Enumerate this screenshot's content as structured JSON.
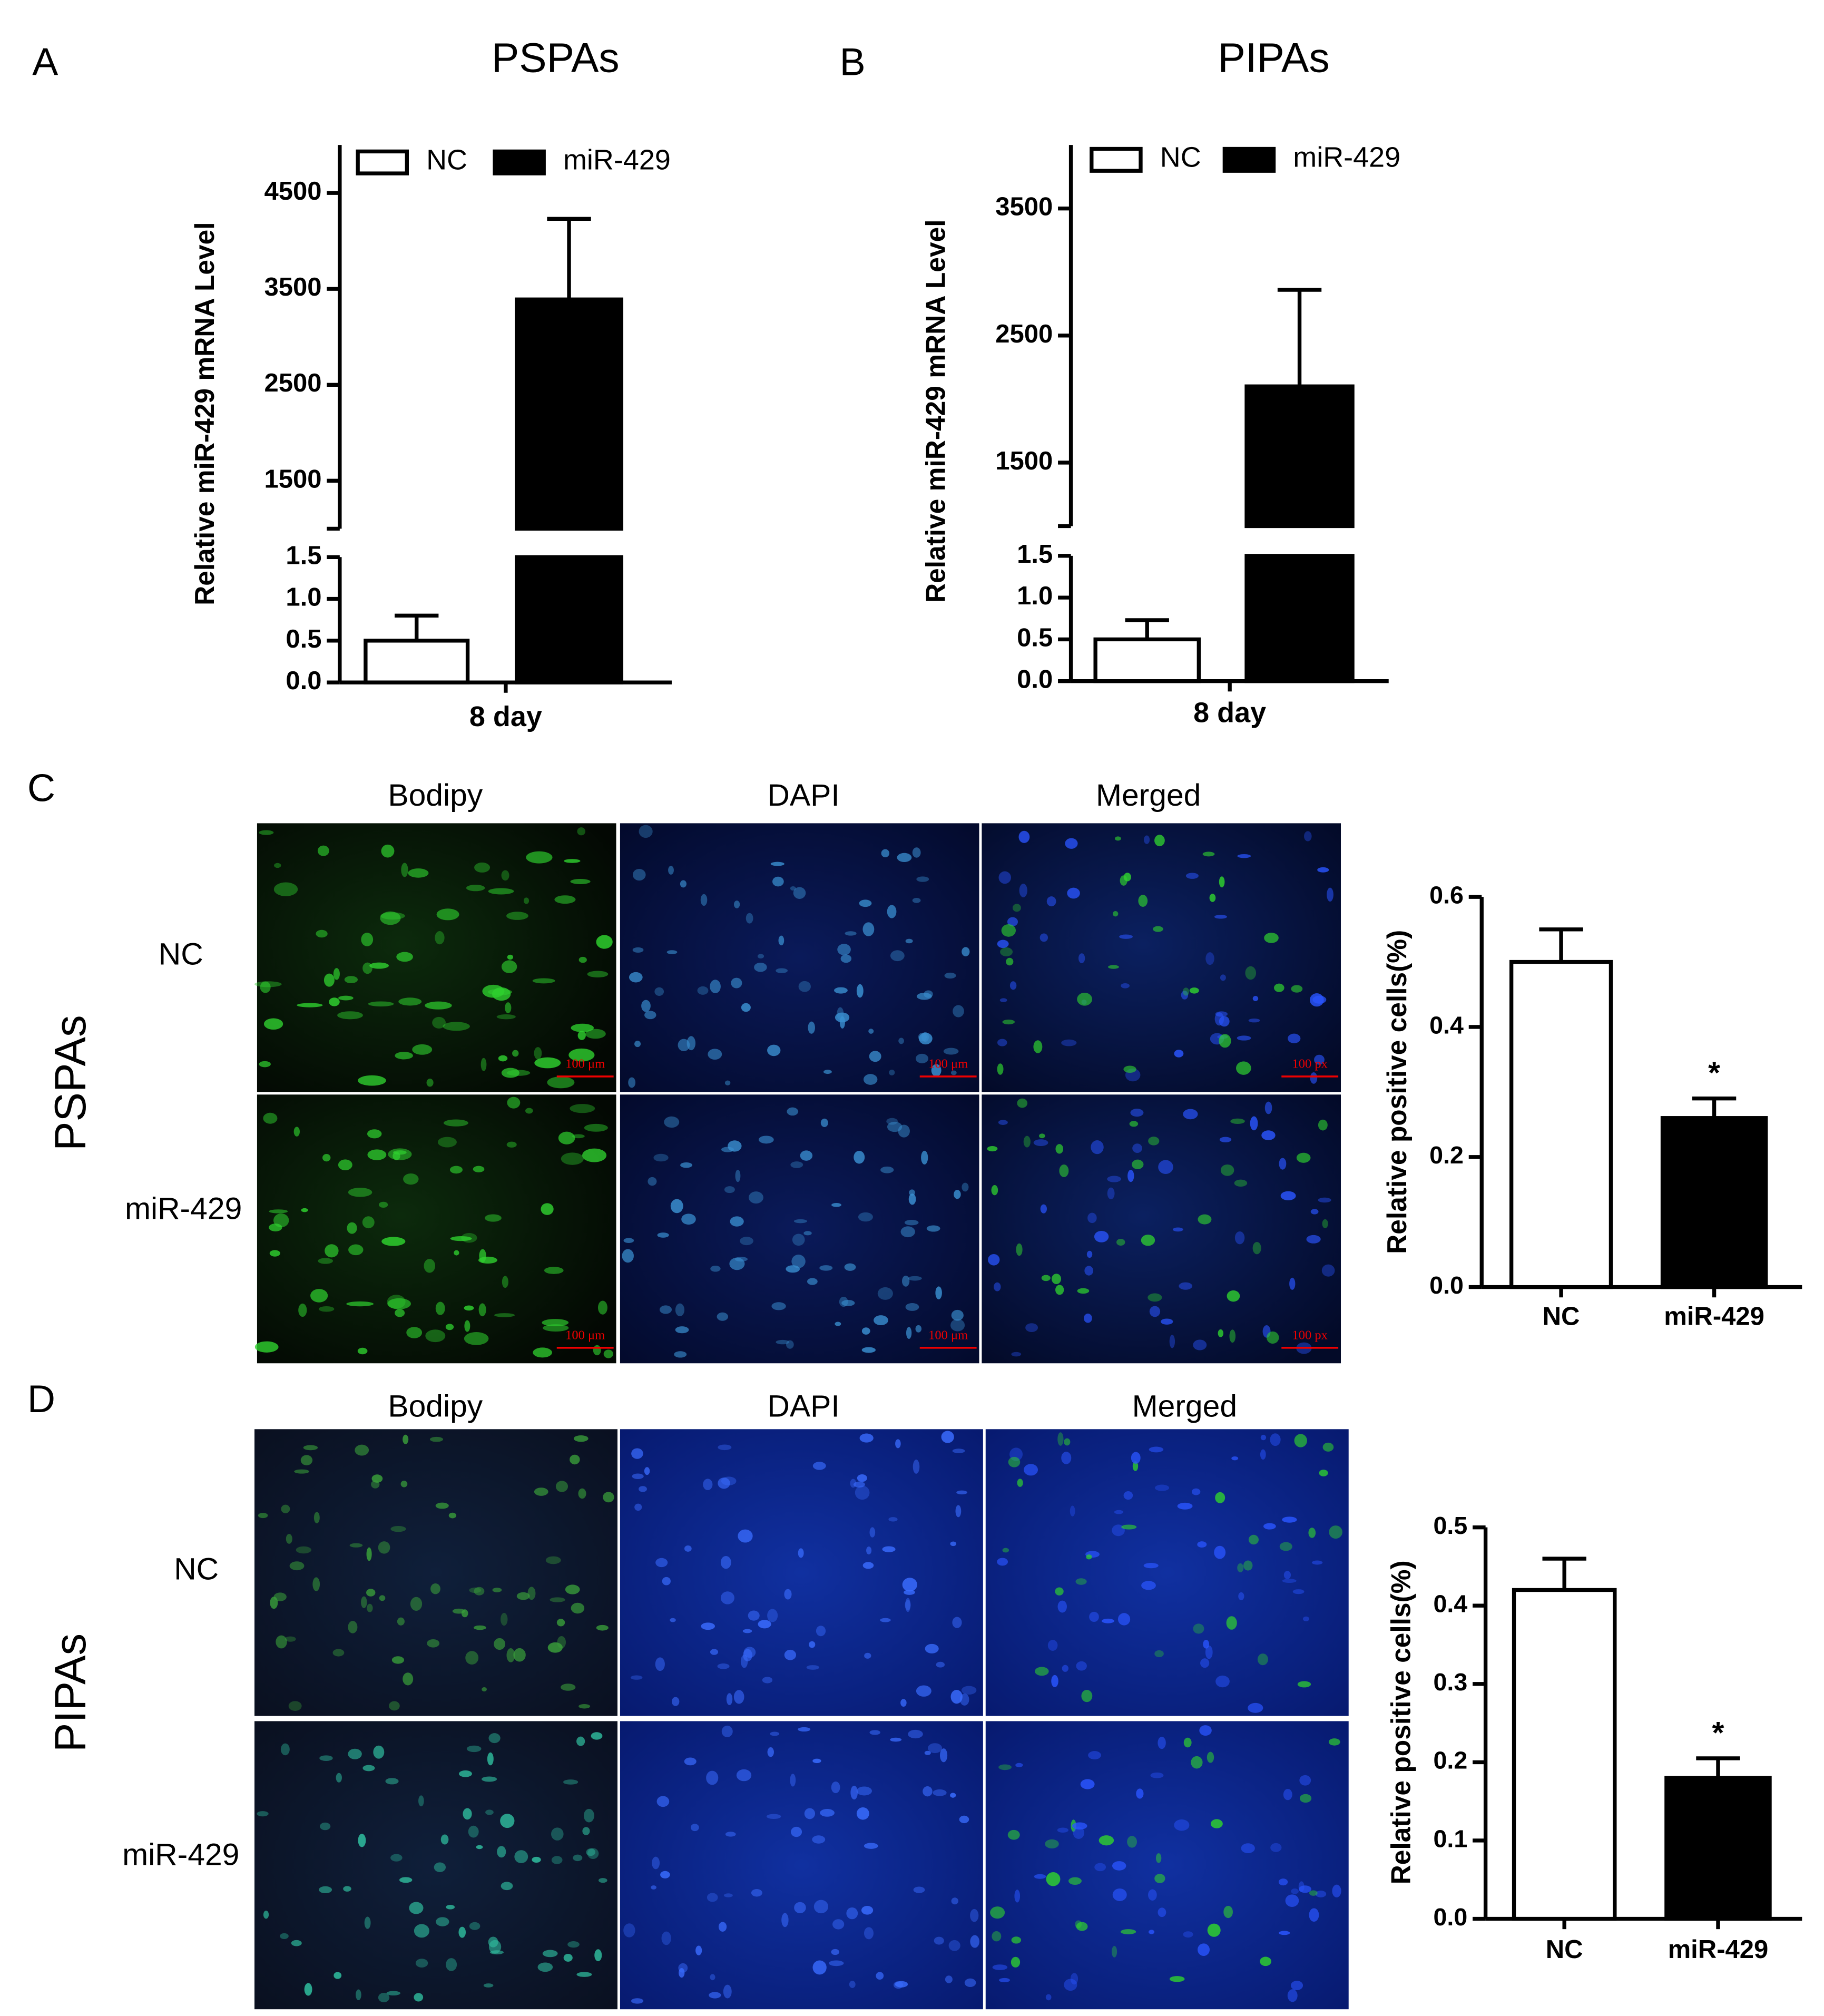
{
  "figure": {
    "panel_letters": [
      "A",
      "B",
      "C",
      "D"
    ],
    "image_blocks": [
      {
        "group": "PSPAs",
        "columns": [
          "Bodipy",
          "DAPI",
          "Merged"
        ],
        "rows": [
          "NC",
          "miR-429"
        ],
        "scale_labels": [
          [
            "100 μm",
            "100 μm",
            "100 px"
          ],
          [
            "100 μm",
            "100 μm",
            "100 px"
          ]
        ]
      },
      {
        "group": "PIPAs",
        "columns": [
          "Bodipy",
          "DAPI",
          "Merged"
        ],
        "rows": [
          "NC",
          "miR-429"
        ]
      }
    ]
  },
  "chart_data": [
    {
      "type": "broken-bar",
      "title": "PSPAs",
      "y_label": "Relative miR-429 mRNA Level",
      "categories": [
        "8 day"
      ],
      "series": [
        {
          "name": "NC",
          "color": "#ffffff",
          "values": [
            0.5
          ],
          "errors": [
            0.3
          ]
        },
        {
          "name": "miR-429",
          "color": "#000000",
          "values": [
            3390
          ],
          "errors": [
            840
          ]
        }
      ],
      "segments": [
        {
          "ylim": [
            0,
            1.5
          ],
          "yticks": [
            {
              "value": 0,
              "label": "0.0"
            },
            {
              "value": 0.5,
              "label": "0.5"
            },
            {
              "value": 1,
              "label": "1.0"
            },
            {
              "value": 1.5,
              "label": "1.5"
            }
          ]
        },
        {
          "ylim": [
            1000,
            5000
          ],
          "yticks": [
            1500,
            2500,
            3500,
            4500
          ]
        }
      ],
      "legend": "top"
    },
    {
      "type": "broken-bar",
      "title": "PIPAs",
      "y_label": "Relative miR-429 mRNA Level",
      "categories": [
        "8 day"
      ],
      "series": [
        {
          "name": "NC",
          "color": "#ffffff",
          "values": [
            0.5
          ],
          "errors": [
            0.23
          ]
        },
        {
          "name": "miR-429",
          "color": "#000000",
          "values": [
            2100
          ],
          "errors": [
            760
          ]
        }
      ],
      "segments": [
        {
          "ylim": [
            0,
            1.5
          ],
          "yticks": [
            {
              "value": 0,
              "label": "0.0"
            },
            {
              "value": 0.5,
              "label": "0.5"
            },
            {
              "value": 1,
              "label": "1.0"
            },
            {
              "value": 1.5,
              "label": "1.5"
            }
          ]
        },
        {
          "ylim": [
            1000,
            4000
          ],
          "yticks": [
            1500,
            2500,
            3500
          ]
        }
      ],
      "legend": "top"
    },
    {
      "type": "bar",
      "y_label": "Relative positive cells(%)",
      "categories": [
        "NC",
        "miR-429"
      ],
      "values": [
        0.5,
        0.26
      ],
      "errors": [
        0.05,
        0.03
      ],
      "colors": [
        "#ffffff",
        "#000000"
      ],
      "annotations": [
        {
          "x": "miR-429",
          "text": "*"
        }
      ],
      "ylim": [
        0,
        0.6
      ],
      "yticks": [
        {
          "value": 0,
          "label": "0.0"
        },
        {
          "value": 0.2,
          "label": "0.2"
        },
        {
          "value": 0.4,
          "label": "0.4"
        },
        {
          "value": 0.6,
          "label": "0.6"
        }
      ]
    },
    {
      "type": "bar",
      "y_label": "Relative positive cells(%)",
      "categories": [
        "NC",
        "miR-429"
      ],
      "values": [
        0.42,
        0.18
      ],
      "errors": [
        0.04,
        0.025
      ],
      "colors": [
        "#ffffff",
        "#000000"
      ],
      "annotations": [
        {
          "x": "miR-429",
          "text": "*"
        }
      ],
      "ylim": [
        0,
        0.5
      ],
      "yticks": [
        {
          "value": 0,
          "label": "0.0"
        },
        {
          "value": 0.1,
          "label": "0.1"
        },
        {
          "value": 0.2,
          "label": "0.2"
        },
        {
          "value": 0.3,
          "label": "0.3"
        },
        {
          "value": 0.4,
          "label": "0.4"
        },
        {
          "value": 0.5,
          "label": "0.5"
        }
      ]
    }
  ]
}
